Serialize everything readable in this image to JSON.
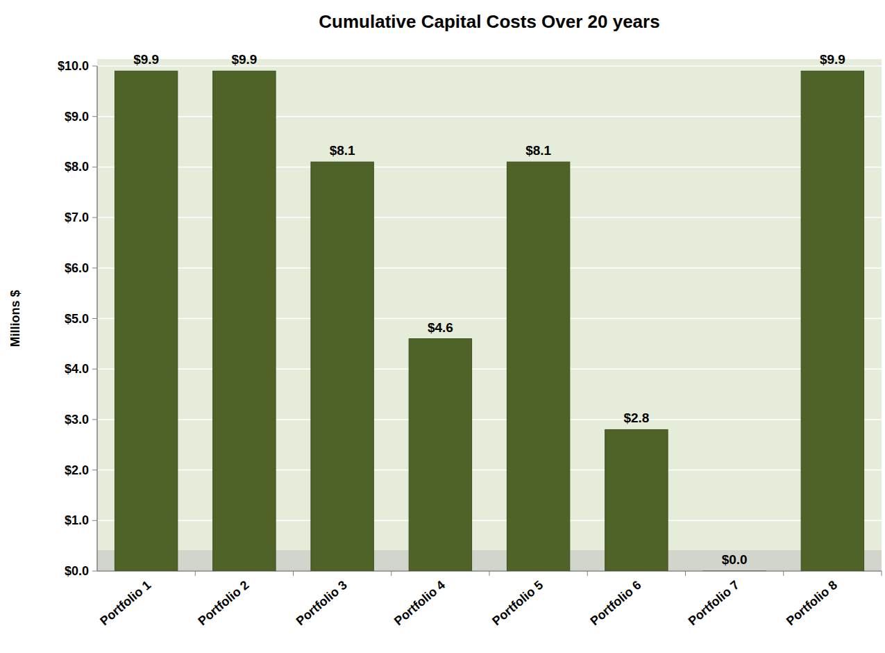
{
  "chart_data": {
    "type": "bar",
    "title": "Cumulative Capital Costs Over 20 years",
    "y_label": "Millions $",
    "categories": [
      "Portfolio 1",
      "Portfolio 2",
      "Portfolio 3",
      "Portfolio 4",
      "Portfolio 5",
      "Portfolio 6",
      "Portfolio 7",
      "Portfolio 8"
    ],
    "values": [
      9.9,
      9.9,
      8.1,
      4.6,
      8.1,
      2.8,
      0.0,
      9.9
    ],
    "value_labels": [
      "$9.9",
      "$9.9",
      "$8.1",
      "$4.6",
      "$8.1",
      "$2.8",
      "$0.0",
      "$9.9"
    ],
    "color": "#4f6228",
    "ylim": [
      0,
      10
    ],
    "yticks": [
      {
        "value": 0,
        "label": "$0.0"
      },
      {
        "value": 1,
        "label": "$1.0"
      },
      {
        "value": 2,
        "label": "$2.0"
      },
      {
        "value": 3,
        "label": "$3.0"
      },
      {
        "value": 4,
        "label": "$4.0"
      },
      {
        "value": 5,
        "label": "$5.0"
      },
      {
        "value": 6,
        "label": "$6.0"
      },
      {
        "value": 7,
        "label": "$7.0"
      },
      {
        "value": 8,
        "label": "$8.0"
      },
      {
        "value": 9,
        "label": "$9.0"
      },
      {
        "value": 10,
        "label": "$10.0"
      }
    ],
    "grid": true,
    "data_labels": true
  }
}
